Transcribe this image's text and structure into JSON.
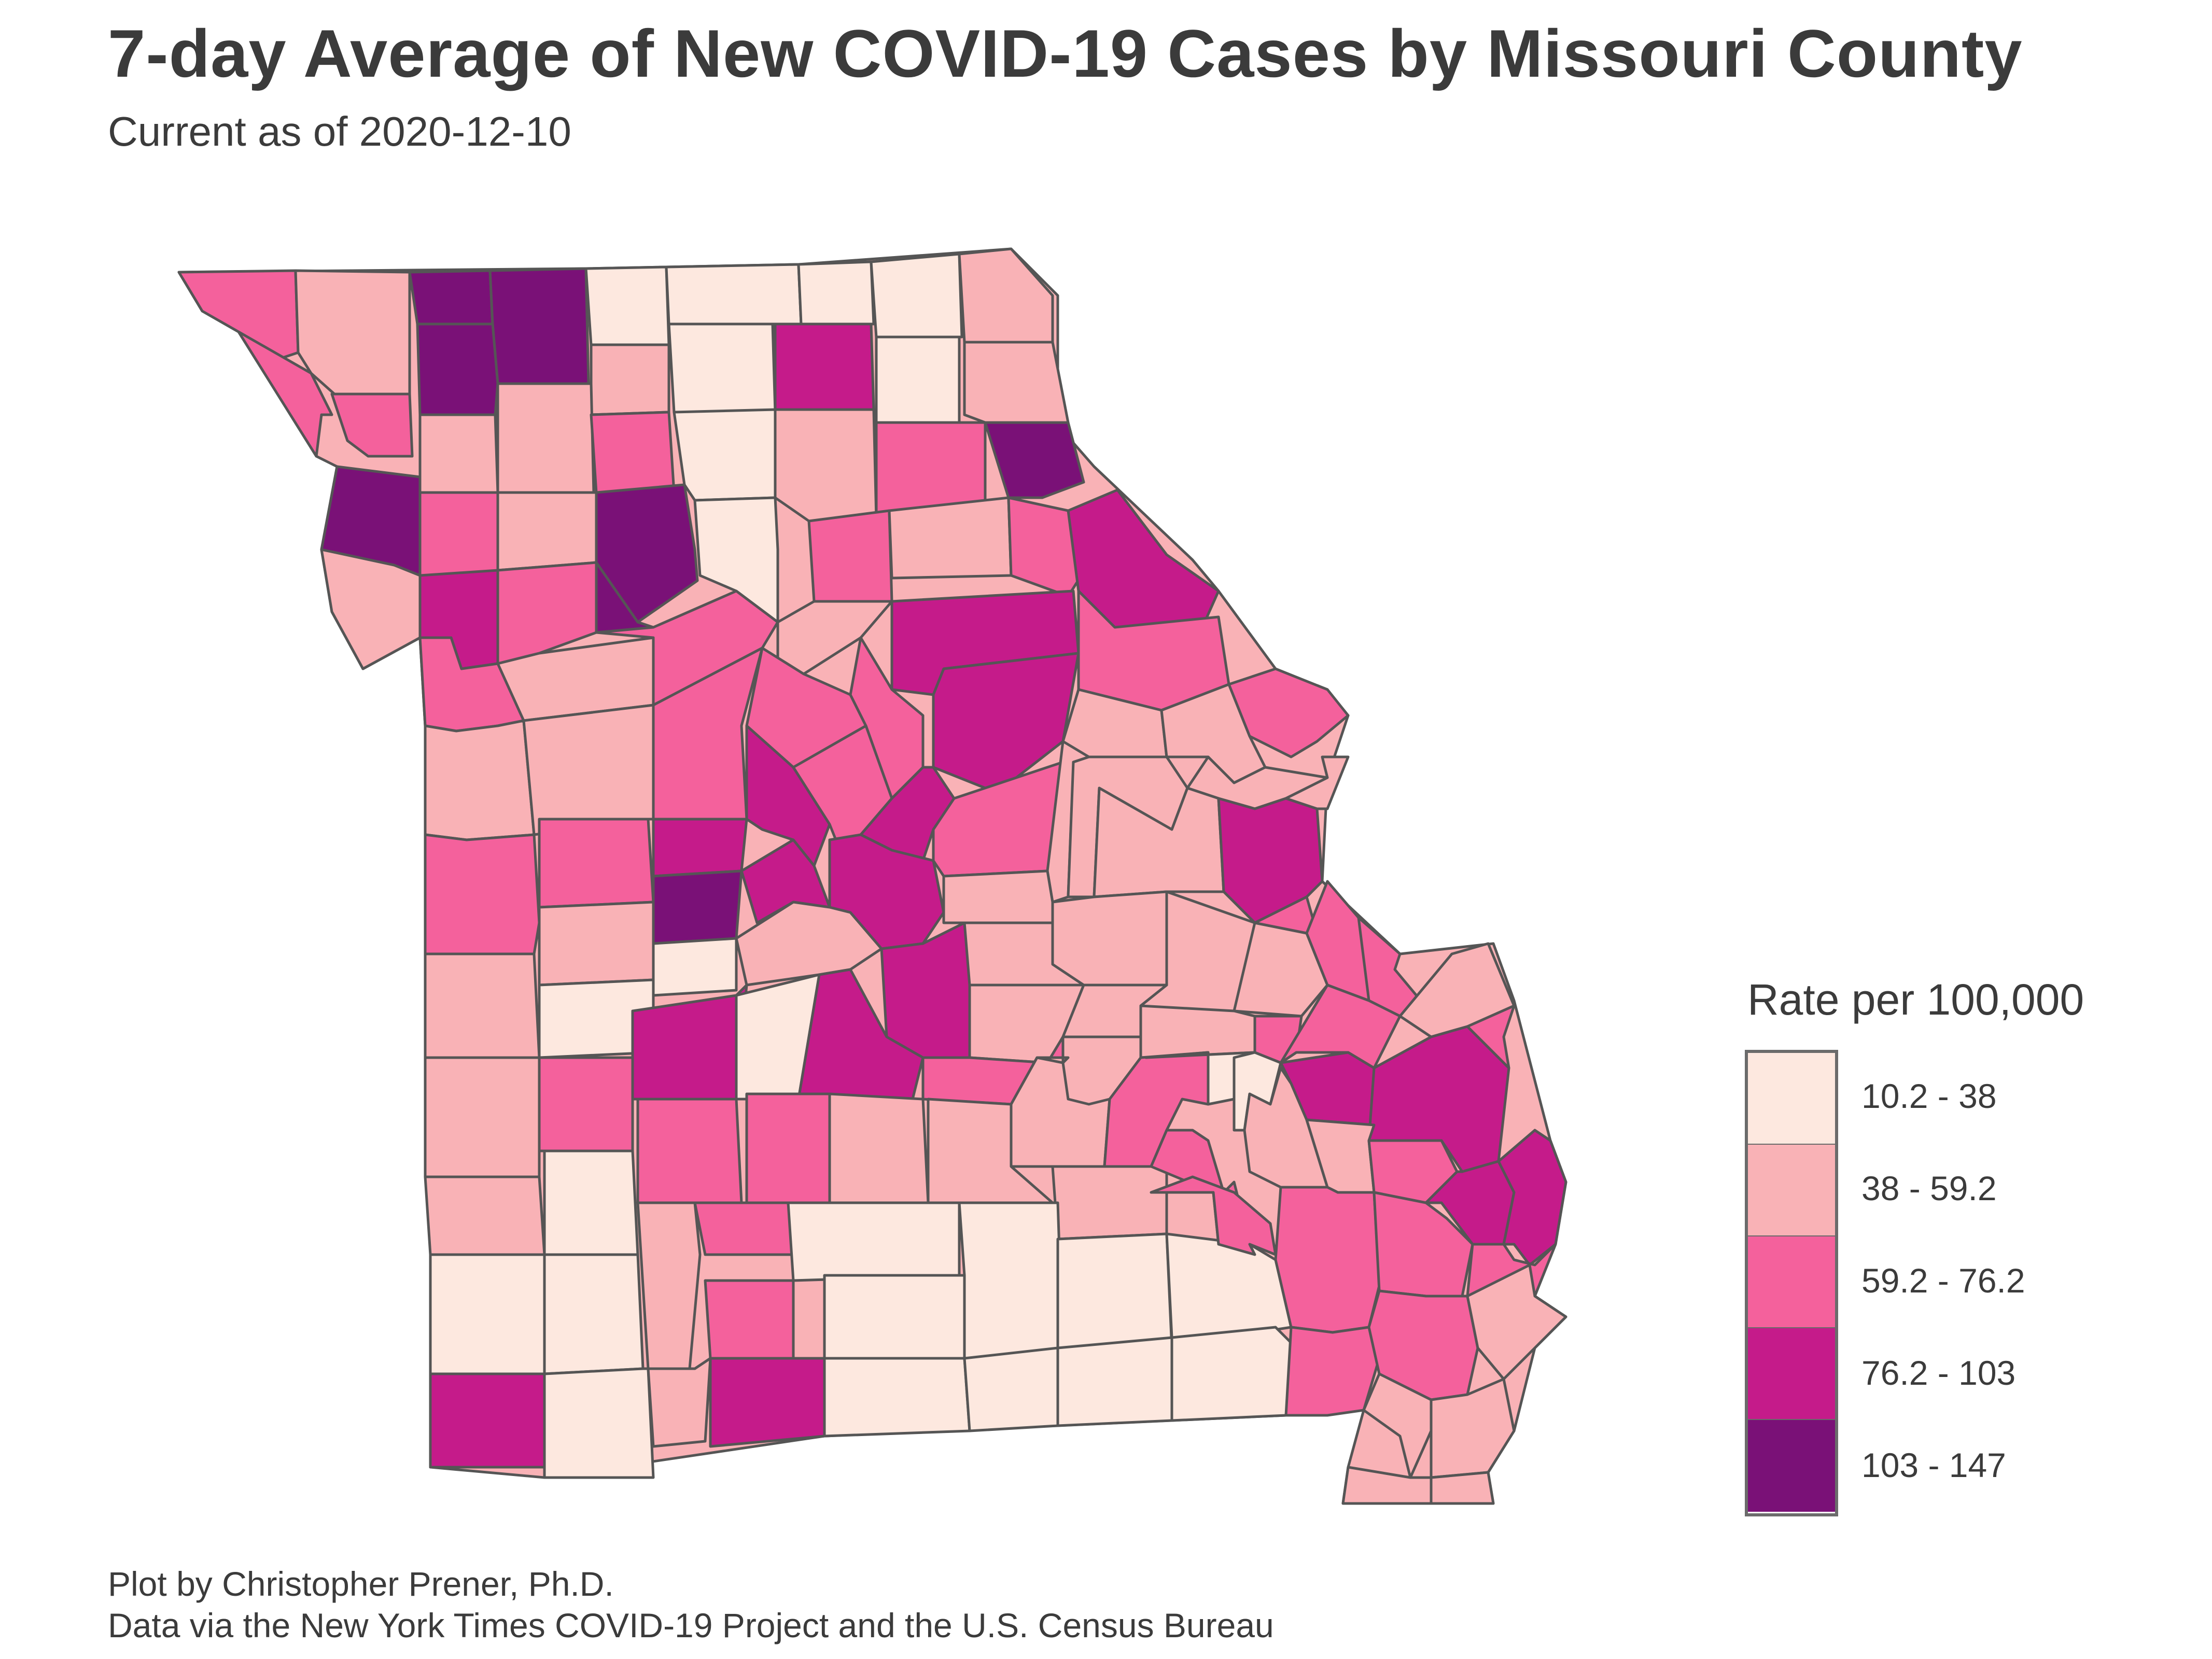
{
  "title": "7-day Average of New COVID-19 Cases by Missouri County",
  "subtitle": "Current as of 2020-12-10",
  "legend": {
    "title": "Rate per 100,000",
    "classes": [
      {
        "label": "10.2 - 38",
        "color": "#fde8df",
        "icon": "swatch-icon"
      },
      {
        "label": "38 - 59.2",
        "color": "#f9b2b6",
        "icon": "swatch-icon"
      },
      {
        "label": "59.2 - 76.2",
        "color": "#f4619c",
        "icon": "swatch-icon"
      },
      {
        "label": "76.2 - 103",
        "color": "#c51b8a",
        "icon": "swatch-icon"
      },
      {
        "label": "103 - 147",
        "color": "#7a1177",
        "icon": "swatch-icon"
      }
    ]
  },
  "caption": {
    "line1": "Plot by Christopher Prener, Ph.D.",
    "line2": "Data via the New York Times COVID-19 Project and the U.S. Census Bureau"
  },
  "colors": {
    "border": "#555555",
    "text": "#3b3b3b"
  }
}
